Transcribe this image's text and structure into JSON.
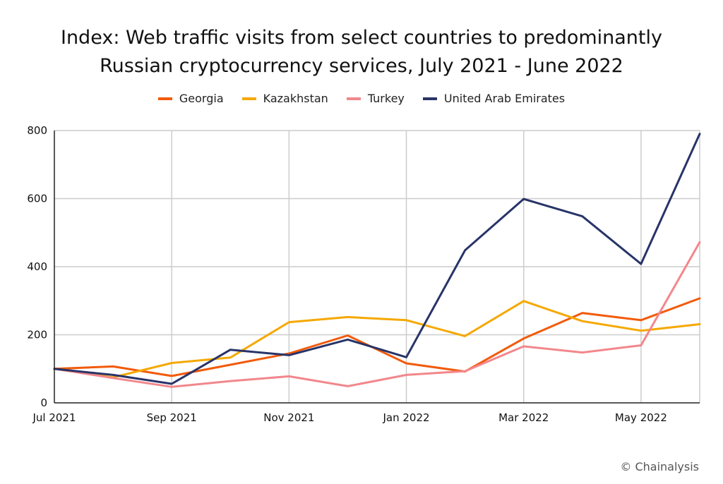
{
  "title_lines": [
    "Index: Web traffic visits from select countries to predominantly",
    "Russian cryptocurrency services, July 2021 - June 2022"
  ],
  "credit": "© Chainalysis",
  "chart_data": {
    "type": "line",
    "title": "Index: Web traffic visits from select countries to predominantly Russian cryptocurrency services, July 2021 - June 2022",
    "xlabel": "",
    "ylabel": "",
    "ylim": [
      0,
      800
    ],
    "yticks": [
      "0",
      "200",
      "400",
      "600",
      "800"
    ],
    "ytick_values": [
      0,
      200,
      400,
      600,
      800
    ],
    "legend_position": "top-center",
    "grid": true,
    "categories": [
      "Jul 2021",
      "Aug 2021",
      "Sep 2021",
      "Oct 2021",
      "Nov 2021",
      "Dec 2021",
      "Jan 2022",
      "Feb 2022",
      "Mar 2022",
      "Apr 2022",
      "May 2022",
      "Jun 2022"
    ],
    "xtick_labels": [
      "Jul 2021",
      "",
      "Sep 2021",
      "",
      "Nov 2021",
      "",
      "Jan 2022",
      "",
      "Mar 2022",
      "",
      "May 2022",
      ""
    ],
    "series": [
      {
        "name": "Georgia",
        "color": "#f25a0a",
        "values": [
          100,
          107,
          79,
          112,
          145,
          198,
          116,
          92,
          189,
          264,
          243,
          307
        ]
      },
      {
        "name": "Kazakhstan",
        "color": "#f5a800",
        "values": [
          100,
          75,
          117,
          133,
          237,
          252,
          243,
          196,
          299,
          240,
          212,
          231
        ]
      },
      {
        "name": "Turkey",
        "color": "#f2878c",
        "values": [
          100,
          73,
          47,
          64,
          78,
          49,
          82,
          93,
          166,
          148,
          169,
          472
        ]
      },
      {
        "name": "United Arab Emirates",
        "color": "#283468",
        "values": [
          100,
          82,
          56,
          156,
          140,
          186,
          134,
          448,
          599,
          548,
          408,
          790
        ]
      }
    ]
  }
}
